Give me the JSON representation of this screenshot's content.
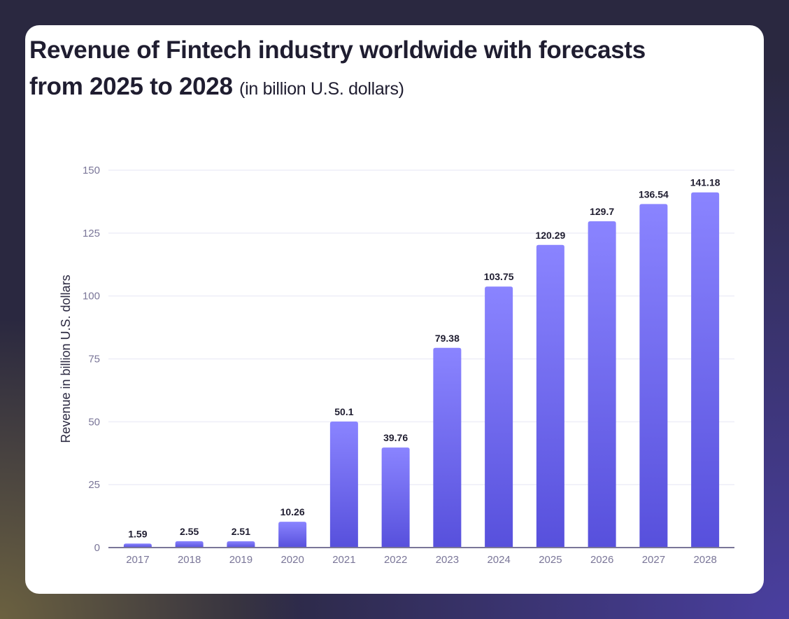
{
  "title": "Revenue of Fintech industry worldwide with forecasts from 2025 to 2028",
  "subtitle": "(in billion U.S. dollars)",
  "colors": {
    "bar_top": "#8a84ff",
    "bar_bottom": "#5750dc",
    "grid": "#eeeef8",
    "axis": "#7a7698",
    "tick_text": "#7a7698",
    "label_text": "#1f1d30"
  },
  "chart_data": {
    "type": "bar",
    "title": "Revenue of Fintech industry worldwide with forecasts from 2025 to 2028 (in billion U.S. dollars)",
    "xlabel": "",
    "ylabel": "Revenue in billion U.S. dollars",
    "ylim": [
      0,
      150
    ],
    "yticks": [
      0,
      25,
      50,
      75,
      100,
      125,
      150
    ],
    "grid": true,
    "categories": [
      "2017",
      "2018",
      "2019",
      "2020",
      "2021",
      "2022",
      "2023",
      "2024",
      "2025",
      "2026",
      "2027",
      "2028"
    ],
    "values": [
      1.59,
      2.55,
      2.51,
      10.26,
      50.1,
      39.76,
      79.38,
      103.75,
      120.29,
      129.7,
      136.54,
      141.18
    ],
    "data_labels": [
      "1.59",
      "2.55",
      "2.51",
      "10.26",
      "50.1",
      "39.76",
      "79.38",
      "103.75",
      "120.29",
      "129.7",
      "136.54",
      "141.18"
    ]
  }
}
